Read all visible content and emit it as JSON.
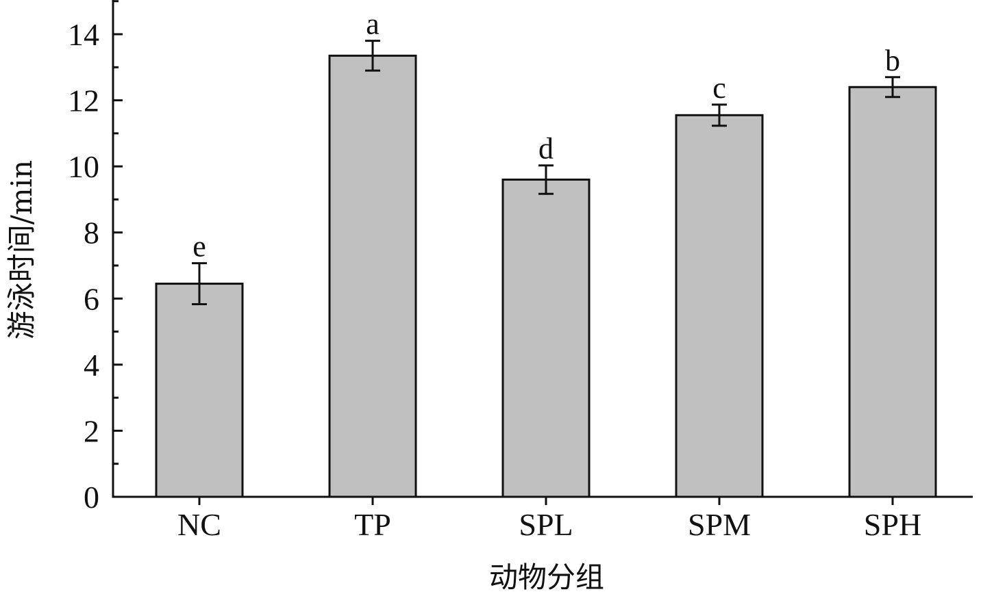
{
  "chart_data": {
    "type": "bar",
    "title": "",
    "xlabel": "动物分组",
    "ylabel": "游泳时间/min",
    "categories": [
      "NC",
      "TP",
      "SPL",
      "SPM",
      "SPH"
    ],
    "values": [
      6.45,
      13.35,
      9.6,
      11.55,
      12.4
    ],
    "errors": [
      0.62,
      0.45,
      0.43,
      0.32,
      0.3
    ],
    "significance": [
      "e",
      "a",
      "d",
      "c",
      "b"
    ],
    "ylim": [
      0,
      15
    ],
    "yticks": [
      0,
      2,
      4,
      6,
      8,
      10,
      12,
      14
    ],
    "ytick_labels": [
      "0",
      "2",
      "4",
      "6",
      "8",
      "10",
      "12",
      "14"
    ],
    "grid": false,
    "colors": {
      "bar_fill": "#c0c0c0",
      "bar_edge": "#111111",
      "axis": "#111111"
    }
  }
}
